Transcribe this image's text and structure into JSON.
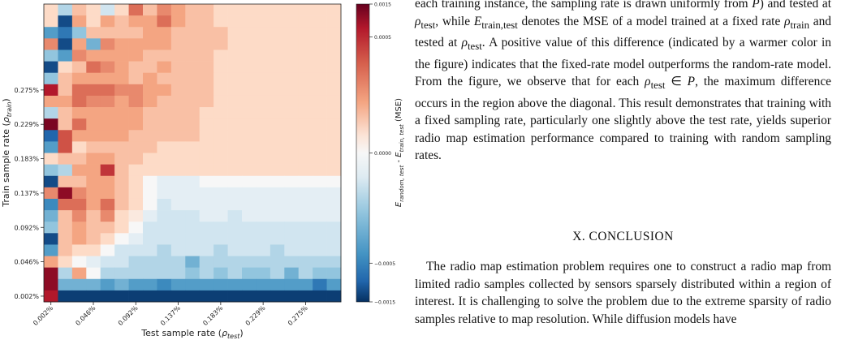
{
  "chart_data": {
    "type": "heatmap",
    "xlabel": "Test sample rate (ρtest)",
    "ylabel": "Train sample rate (ρtrain)",
    "colorbar_label": "Erandom, test − Etrain, test (MSE)",
    "x_tick_labels": [
      "0.002%",
      "0.046%",
      "0.092%",
      "0.137%",
      "0.183%",
      "0.229%",
      "0.275%"
    ],
    "y_tick_labels": [
      "0.002%",
      "0.046%",
      "0.092%",
      "0.137%",
      "0.183%",
      "0.229%",
      "0.275%"
    ],
    "colorbar_ticks": [
      {
        "label": "0.0015",
        "value": 0.0015
      },
      {
        "label": "0.0005",
        "value": 0.0005
      },
      {
        "label": "0.0000",
        "value": 0
      },
      {
        "label": "−0.0005",
        "value": -0.0005
      },
      {
        "label": "−0.0015",
        "value": -0.0015
      }
    ],
    "color_scale": {
      "type": "symlog",
      "vmin": -0.0015,
      "vmax": 0.0015,
      "cmap": "RdBu_r"
    },
    "rows_top_to_bottom": [
      [
        0.1,
        -0.2,
        0.2,
        0.1,
        -0.1,
        0.1,
        0.5,
        0.2,
        0.4,
        0.3,
        0.2,
        0.2,
        0.1,
        0.1,
        0.1,
        0.1,
        0.1,
        0.1,
        0.1,
        0.1,
        0.1
      ],
      [
        0.1,
        -0.9,
        0.3,
        0.1,
        0.3,
        0.2,
        0.3,
        0.3,
        0.5,
        0.3,
        0.2,
        0.2,
        0.1,
        0.1,
        0.1,
        0.1,
        0.1,
        0.1,
        0.1,
        0.1,
        0.1
      ],
      [
        -0.5,
        -0.7,
        -0.3,
        0.2,
        0.2,
        0.2,
        0.2,
        0.3,
        0.3,
        0.2,
        0.2,
        0.2,
        0.2,
        0.1,
        0.1,
        0.1,
        0.1,
        0.1,
        0.1,
        0.1,
        0.1
      ],
      [
        0.4,
        -0.9,
        0.3,
        -0.4,
        0.4,
        0.3,
        0.3,
        0.3,
        0.3,
        0.2,
        0.2,
        0.2,
        0.2,
        0.1,
        0.1,
        0.1,
        0.1,
        0.1,
        0.1,
        0.1,
        0.1
      ],
      [
        -0.3,
        -0.5,
        0.4,
        0.3,
        0.3,
        0.3,
        0.3,
        0.2,
        0.2,
        0.2,
        0.2,
        0.2,
        0.1,
        0.1,
        0.1,
        0.1,
        0.1,
        0.1,
        0.1,
        0.1,
        0.1
      ],
      [
        -0.9,
        0.1,
        0.2,
        0.5,
        0.4,
        0.3,
        0.2,
        0.2,
        0.3,
        0.2,
        0.2,
        0.2,
        0.1,
        0.1,
        0.1,
        0.1,
        0.1,
        0.1,
        0.1,
        0.1,
        0.1
      ],
      [
        -0.3,
        0.2,
        0.3,
        0.3,
        0.3,
        0.3,
        0.2,
        0.3,
        0.2,
        0.2,
        0.2,
        0.2,
        0.1,
        0.1,
        0.1,
        0.1,
        0.1,
        0.1,
        0.1,
        0.1,
        0.1
      ],
      [
        0.8,
        0.2,
        0.5,
        0.5,
        0.5,
        0.4,
        0.4,
        0.3,
        0.3,
        0.2,
        0.2,
        0.2,
        0.1,
        0.1,
        0.1,
        0.1,
        0.1,
        0.1,
        0.1,
        0.1,
        0.1
      ],
      [
        0.3,
        0.3,
        0.5,
        0.4,
        0.4,
        0.3,
        0.4,
        0.3,
        0.2,
        0.2,
        0.2,
        0.2,
        0.1,
        0.1,
        0.1,
        0.1,
        0.1,
        0.1,
        0.1,
        0.1,
        0.1
      ],
      [
        -0.2,
        0.2,
        0.3,
        0.3,
        0.3,
        0.3,
        0.3,
        0.2,
        0.2,
        0.2,
        0.2,
        0.1,
        0.1,
        0.1,
        0.1,
        0.1,
        0.1,
        0.1,
        0.1,
        0.1,
        0.1
      ],
      [
        0.95,
        0.2,
        0.5,
        0.3,
        0.3,
        0.3,
        0.3,
        0.2,
        0.2,
        0.2,
        0.2,
        0.1,
        0.1,
        0.1,
        0.1,
        0.1,
        0.1,
        0.1,
        0.1,
        0.1,
        0.1
      ],
      [
        -0.8,
        0.6,
        0.3,
        0.3,
        0.3,
        0.3,
        0.2,
        0.2,
        0.2,
        0.2,
        0.2,
        0.1,
        0.1,
        0.1,
        0.1,
        0.1,
        0.1,
        0.1,
        0.1,
        0.1,
        0.1
      ],
      [
        -0.5,
        0.6,
        0.1,
        0.2,
        0.2,
        0.2,
        0.2,
        0.2,
        0.1,
        0.1,
        0.1,
        0.1,
        0.1,
        0.1,
        0.1,
        0.1,
        0.1,
        0.1,
        0.1,
        0.1,
        0.1
      ],
      [
        0.1,
        0.2,
        0.2,
        0.3,
        0.3,
        0.2,
        0.2,
        0.1,
        0.1,
        0.1,
        0.1,
        0.1,
        0.1,
        0.1,
        0.1,
        0.1,
        0.1,
        0.1,
        0.1,
        0.1,
        0.1
      ],
      [
        -0.3,
        -0.2,
        0.3,
        0.3,
        0.7,
        0.2,
        0.1,
        0.1,
        0.1,
        0.1,
        0.1,
        0.1,
        0.1,
        0.1,
        0.1,
        0.1,
        0.1,
        0.1,
        0.1,
        0.1,
        0.1
      ],
      [
        -0.9,
        0.2,
        0.2,
        0.3,
        0.3,
        0.2,
        0.1,
        0.0,
        -0.05,
        -0.05,
        -0.05,
        0.0,
        0.0,
        0.0,
        0.0,
        0.0,
        0.0,
        0.0,
        0.0,
        0.0,
        0.0
      ],
      [
        0.4,
        0.9,
        0.4,
        0.3,
        0.3,
        0.2,
        0.1,
        0.0,
        -0.05,
        -0.05,
        -0.05,
        -0.05,
        -0.05,
        -0.05,
        -0.05,
        -0.05,
        -0.05,
        -0.05,
        -0.05,
        -0.05,
        -0.05
      ],
      [
        -0.6,
        0.5,
        0.5,
        0.3,
        0.5,
        0.2,
        0.1,
        0.0,
        -0.1,
        -0.05,
        -0.05,
        -0.05,
        -0.05,
        -0.05,
        -0.05,
        -0.05,
        -0.05,
        -0.05,
        -0.05,
        -0.05,
        -0.05
      ],
      [
        -0.4,
        0.2,
        0.4,
        0.2,
        0.4,
        0.1,
        0.05,
        -0.05,
        -0.1,
        -0.1,
        -0.1,
        -0.05,
        -0.05,
        -0.1,
        -0.05,
        -0.05,
        -0.05,
        -0.05,
        -0.05,
        -0.05,
        -0.05
      ],
      [
        -0.3,
        0.2,
        0.3,
        0.2,
        0.2,
        0.1,
        0.0,
        -0.1,
        -0.1,
        -0.1,
        -0.1,
        -0.1,
        -0.1,
        -0.1,
        -0.1,
        -0.1,
        -0.1,
        -0.1,
        -0.1,
        -0.1,
        -0.1
      ],
      [
        -0.9,
        0.2,
        0.3,
        0.2,
        0.1,
        0.0,
        -0.05,
        -0.1,
        -0.1,
        -0.1,
        -0.1,
        -0.1,
        -0.1,
        -0.1,
        -0.1,
        -0.1,
        -0.1,
        -0.1,
        -0.1,
        -0.1,
        -0.1
      ],
      [
        -0.5,
        0.2,
        0.1,
        0.1,
        0.0,
        -0.1,
        -0.1,
        -0.1,
        -0.2,
        -0.1,
        -0.1,
        -0.1,
        -0.2,
        -0.1,
        -0.1,
        -0.1,
        -0.2,
        -0.1,
        -0.1,
        -0.1,
        -0.1
      ],
      [
        0.3,
        0.1,
        0.0,
        -0.05,
        -0.1,
        -0.1,
        -0.2,
        -0.2,
        -0.2,
        -0.2,
        -0.4,
        -0.2,
        -0.2,
        -0.2,
        -0.2,
        -0.2,
        -0.2,
        -0.2,
        -0.2,
        -0.2,
        -0.2
      ],
      [
        0.9,
        -0.2,
        0.3,
        0.0,
        -0.2,
        -0.2,
        -0.2,
        -0.2,
        -0.2,
        -0.2,
        -0.3,
        -0.2,
        -0.3,
        -0.2,
        -0.3,
        -0.3,
        -0.2,
        -0.4,
        -0.2,
        -0.3,
        -0.3
      ],
      [
        0.9,
        -0.4,
        -0.4,
        -0.4,
        -0.5,
        -0.4,
        -0.5,
        -0.5,
        -0.6,
        -0.5,
        -0.5,
        -0.5,
        -0.5,
        -0.5,
        -0.5,
        -0.5,
        -0.5,
        -0.5,
        -0.5,
        -0.7,
        -0.5
      ],
      [
        0.8,
        -0.95,
        -0.95,
        -0.95,
        -0.95,
        -0.95,
        -0.95,
        -0.95,
        -0.95,
        -0.95,
        -0.95,
        -0.95,
        -0.95,
        -0.95,
        -0.95,
        -0.95,
        -0.95,
        -0.95,
        -0.95,
        -0.95,
        -0.95
      ]
    ],
    "value_note": "cell values as fraction of colorbar half-range (-1..1)"
  },
  "body_text": {
    "para1": "each training instance, the sampling rate is drawn uniformly from P) and tested at ρtest, while Etrain,test denotes the MSE of a model trained at a fixed rate ρtrain and tested at ρtest. A positive value of this difference (indicated by a warmer color in the figure) indicates that the fixed-rate model outperforms the random-rate model. From the figure, we observe that for each ρtest ∈ P, the maximum difference occurs in the region above the diagonal. This result demonstrates that training with a fixed sampling rate, particularly one slightly above the test rate, yields superior radio map estimation performance compared to training with random sampling rates.",
    "section_heading": "X. CONCLUSION",
    "para2": "The radio map estimation problem requires one to construct a radio map from limited radio samples collected by sensors sparsely distributed within a region of interest. It is challenging to solve the problem due to the extreme sparsity of radio samples relative to map resolution. While diffusion models have"
  }
}
